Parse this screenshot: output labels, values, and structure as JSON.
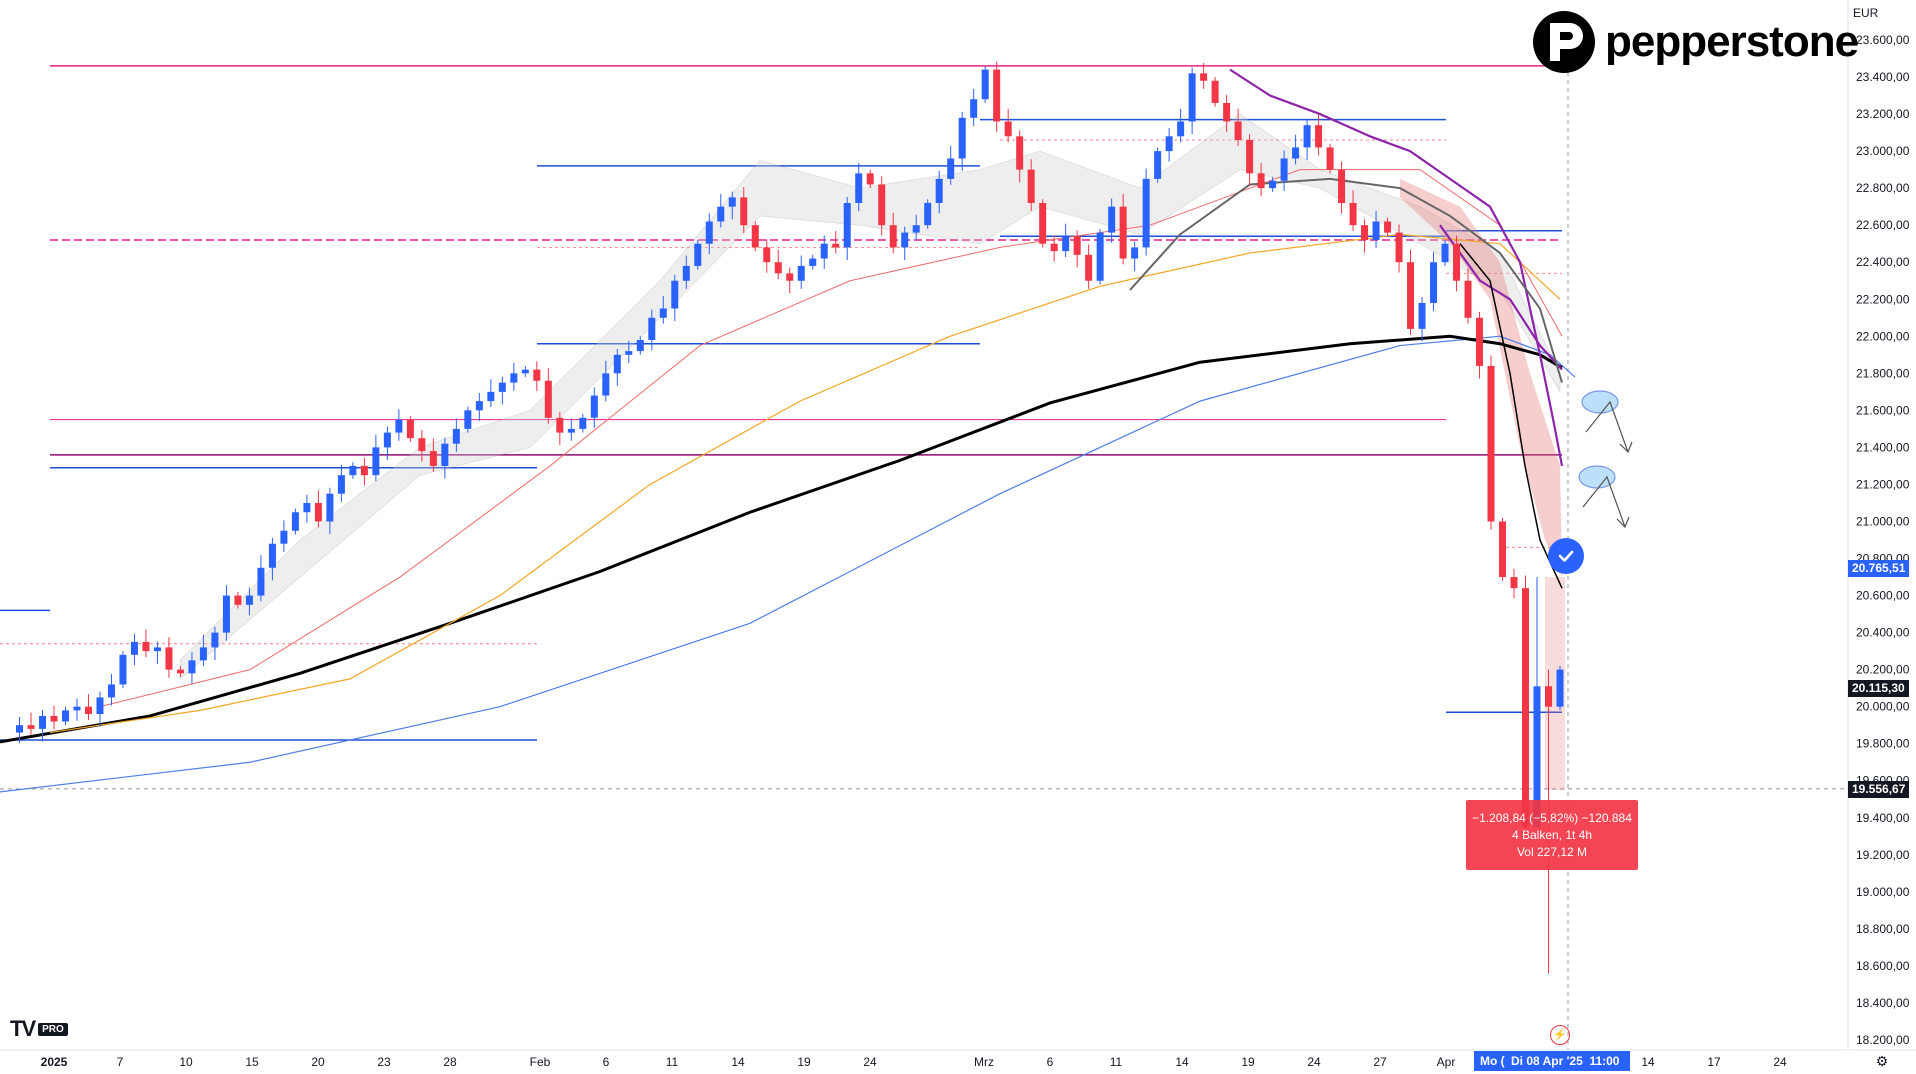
{
  "brand": {
    "name": "pepperstone",
    "currency": "EUR"
  },
  "platform": {
    "logo": "TV",
    "plan": "PRO"
  },
  "chart_data": {
    "type": "candlestick",
    "title": "",
    "ylim": [
      18100,
      23750
    ],
    "y_ticks": [
      "23.600,00",
      "23.400,00",
      "23.200,00",
      "23.000,00",
      "22.800,00",
      "22.600,00",
      "22.400,00",
      "22.200,00",
      "22.000,00",
      "21.800,00",
      "21.600,00",
      "21.400,00",
      "21.200,00",
      "21.000,00",
      "20.800,00",
      "20.600,00",
      "20.400,00",
      "20.200,00",
      "20.000,00",
      "19.800,00",
      "19.600,00",
      "19.400,00",
      "19.200,00",
      "19.000,00",
      "18.800,00",
      "18.600,00",
      "18.400,00",
      "18.200,00"
    ],
    "x_ticks": [
      {
        "label": "2025",
        "bold": true
      },
      {
        "label": "7"
      },
      {
        "label": "10"
      },
      {
        "label": "15"
      },
      {
        "label": "20"
      },
      {
        "label": "23"
      },
      {
        "label": "28"
      },
      {
        "label": "Feb"
      },
      {
        "label": "6"
      },
      {
        "label": "11"
      },
      {
        "label": "14"
      },
      {
        "label": "19"
      },
      {
        "label": "24"
      },
      {
        "label": "Mrz"
      },
      {
        "label": "6"
      },
      {
        "label": "11"
      },
      {
        "label": "14"
      },
      {
        "label": "19"
      },
      {
        "label": "24"
      },
      {
        "label": "27"
      },
      {
        "label": "Apr"
      },
      {
        "label": "14"
      },
      {
        "label": "17"
      },
      {
        "label": "24"
      }
    ],
    "price_labels": {
      "current": "20.765,51",
      "last": "20.115,30",
      "marker": "19.556,67"
    },
    "colors": {
      "up": "#2962ff",
      "down": "#f23645",
      "ma_black": "#000000",
      "ma_blue": "#4f7fe8",
      "ma_orange": "#f5a623",
      "ma_red": "#f06a6a",
      "ma_purple": "#8e24aa",
      "ma_gray": "#666666",
      "level_magenta": "#e91e8c",
      "level_blue": "#1e4fd8"
    },
    "horizontal_levels": [
      23460,
      23170,
      22920,
      22570,
      22520,
      21960,
      21550,
      21360,
      21290,
      20520,
      19820,
      19970
    ]
  },
  "measurement": {
    "line1": "−1.208,84 (−5,82%) −120.884",
    "line2": "4 Balken, 1t 4h",
    "line3": "Vol 227,12 M"
  },
  "crosshair": {
    "date_left": "Mo (",
    "date": "Di 08 Apr '25",
    "time": "11:00"
  },
  "icons": [
    "check-icon",
    "settings-icon",
    "flash-icon"
  ]
}
